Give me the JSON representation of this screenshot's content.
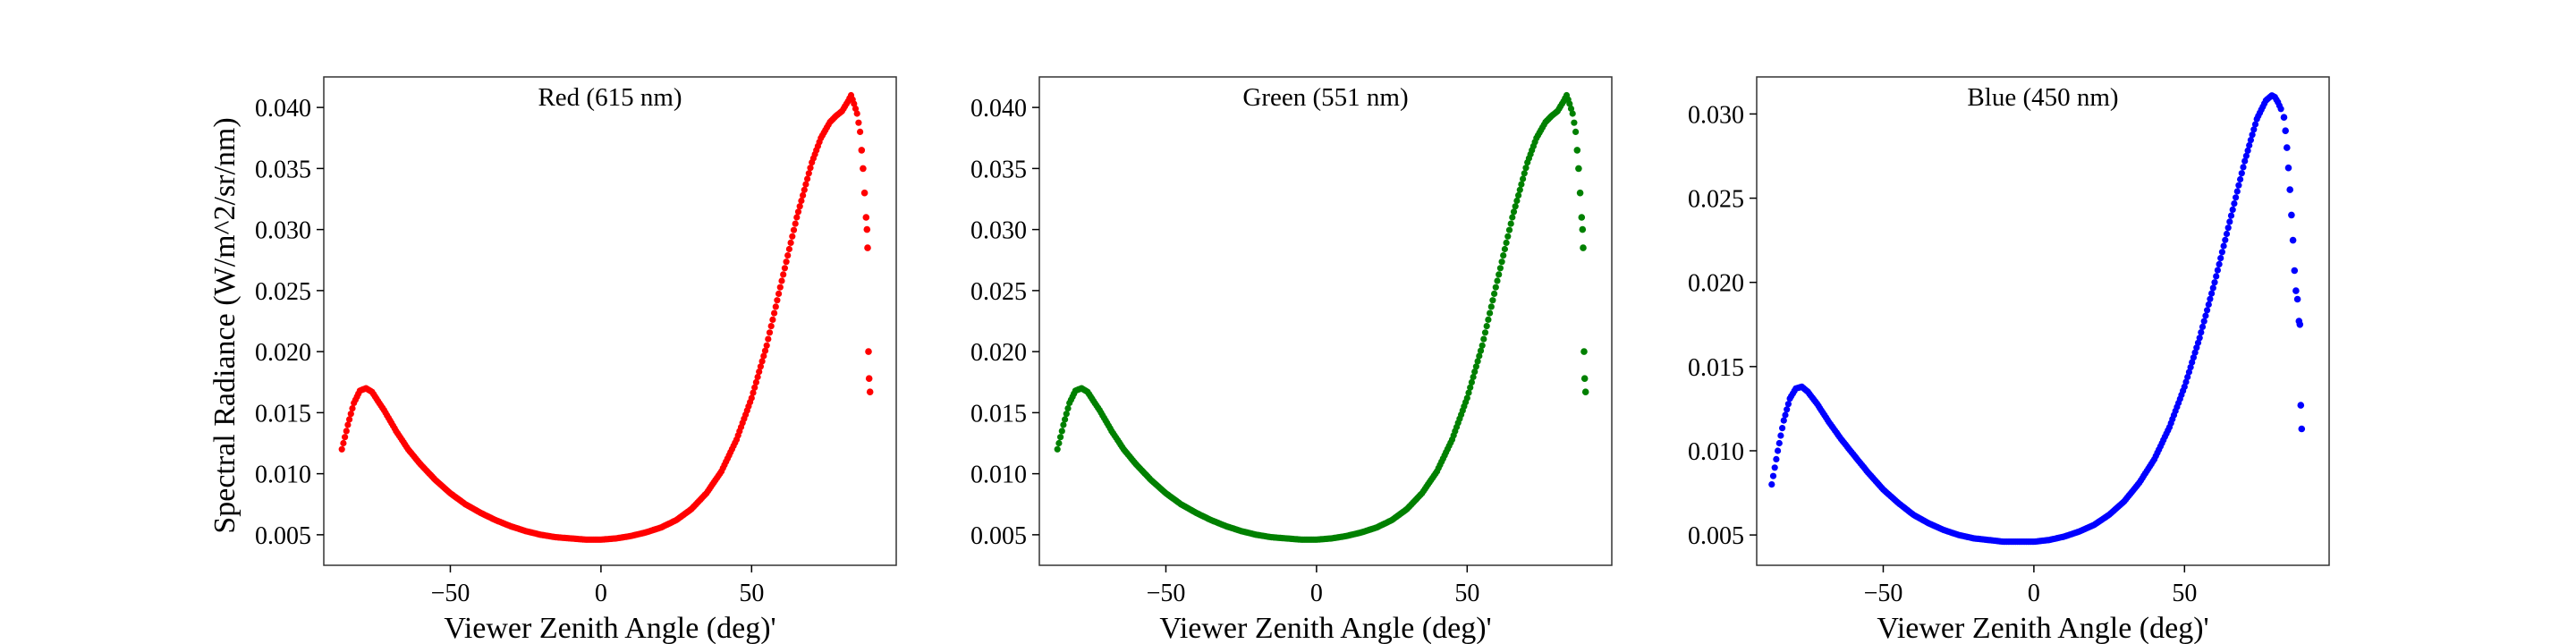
{
  "figure": {
    "ylabel": "Spectral Radiance (W/m^2/sr/nm)"
  },
  "chart_data": [
    {
      "type": "scatter",
      "title": "Red (615 nm)",
      "xlabel": "Viewer Zenith Angle (deg)'",
      "ylabel": "Spectral Radiance (W/m^2/sr/nm)",
      "color": "#ff0000",
      "xlim": [
        -92,
        98
      ],
      "ylim": [
        0.0025,
        0.0425
      ],
      "xticks": [
        -50,
        0,
        50
      ],
      "xtick_labels": [
        "−50",
        "0",
        "50"
      ],
      "yticks": [
        0.005,
        0.01,
        0.015,
        0.02,
        0.025,
        0.03,
        0.035,
        0.04
      ],
      "ytick_labels": [
        "0.005",
        "0.010",
        "0.015",
        "0.020",
        "0.025",
        "0.030",
        "0.035",
        "0.040"
      ],
      "grid": false,
      "curve": {
        "x": [
          -86,
          -84,
          -82,
          -80,
          -78,
          -76,
          -72,
          -68,
          -64,
          -60,
          -55,
          -50,
          -45,
          -40,
          -35,
          -30,
          -25,
          -20,
          -15,
          -10,
          -5,
          0,
          5,
          10,
          15,
          20,
          25,
          30,
          35,
          40,
          45,
          50,
          55,
          60,
          65,
          70,
          73,
          76,
          78,
          80,
          82,
          83,
          84,
          85,
          86
        ],
        "y": [
          0.012,
          0.014,
          0.0158,
          0.0168,
          0.017,
          0.0167,
          0.0152,
          0.0135,
          0.012,
          0.0108,
          0.0095,
          0.0084,
          0.0075,
          0.0068,
          0.0062,
          0.0057,
          0.0053,
          0.005,
          0.0048,
          0.0047,
          0.0046,
          0.0046,
          0.0047,
          0.0049,
          0.0052,
          0.0056,
          0.0062,
          0.0071,
          0.0084,
          0.0102,
          0.0128,
          0.0162,
          0.0205,
          0.0258,
          0.031,
          0.0355,
          0.0375,
          0.0388,
          0.0393,
          0.0397,
          0.0405,
          0.041,
          0.0403,
          0.0395,
          0.038
        ]
      },
      "outliers": {
        "x": [
          86.5,
          87,
          87.5,
          88,
          88.3,
          88.5,
          88.8,
          89,
          89.3
        ],
        "y": [
          0.0365,
          0.035,
          0.033,
          0.031,
          0.03,
          0.0285,
          0.02,
          0.0178,
          0.0167
        ]
      }
    },
    {
      "type": "scatter",
      "title": "Green (551 nm)",
      "xlabel": "Viewer Zenith Angle (deg)'",
      "ylabel": "",
      "color": "#008000",
      "xlim": [
        -92,
        98
      ],
      "ylim": [
        0.0025,
        0.0425
      ],
      "xticks": [
        -50,
        0,
        50
      ],
      "xtick_labels": [
        "−50",
        "0",
        "50"
      ],
      "yticks": [
        0.005,
        0.01,
        0.015,
        0.02,
        0.025,
        0.03,
        0.035,
        0.04
      ],
      "ytick_labels": [
        "0.005",
        "0.010",
        "0.015",
        "0.020",
        "0.025",
        "0.030",
        "0.035",
        "0.040"
      ],
      "grid": false,
      "curve": {
        "x": [
          -86,
          -84,
          -82,
          -80,
          -78,
          -76,
          -72,
          -68,
          -64,
          -60,
          -55,
          -50,
          -45,
          -40,
          -35,
          -30,
          -25,
          -20,
          -15,
          -10,
          -5,
          0,
          5,
          10,
          15,
          20,
          25,
          30,
          35,
          40,
          45,
          50,
          55,
          60,
          65,
          70,
          73,
          76,
          78,
          80,
          82,
          83,
          84,
          85,
          86
        ],
        "y": [
          0.012,
          0.014,
          0.0158,
          0.0168,
          0.017,
          0.0167,
          0.0152,
          0.0135,
          0.012,
          0.0108,
          0.0095,
          0.0084,
          0.0075,
          0.0068,
          0.0062,
          0.0057,
          0.0053,
          0.005,
          0.0048,
          0.0047,
          0.0046,
          0.0046,
          0.0047,
          0.0049,
          0.0052,
          0.0056,
          0.0062,
          0.0071,
          0.0084,
          0.0102,
          0.0128,
          0.0162,
          0.0205,
          0.0258,
          0.031,
          0.0355,
          0.0375,
          0.0388,
          0.0393,
          0.0397,
          0.0405,
          0.041,
          0.0403,
          0.0395,
          0.038
        ]
      },
      "outliers": {
        "x": [
          86.5,
          87,
          87.5,
          88,
          88.3,
          88.5,
          88.8,
          89,
          89.3
        ],
        "y": [
          0.0365,
          0.035,
          0.033,
          0.031,
          0.03,
          0.0285,
          0.02,
          0.0178,
          0.0167
        ]
      }
    },
    {
      "type": "scatter",
      "title": "Blue (450 nm)",
      "xlabel": "Viewer Zenith Angle (deg)'",
      "ylabel": "",
      "color": "#0000ff",
      "xlim": [
        -92,
        98
      ],
      "ylim": [
        0.0032,
        0.0322
      ],
      "xticks": [
        -50,
        0,
        50
      ],
      "xtick_labels": [
        "−50",
        "0",
        "50"
      ],
      "yticks": [
        0.005,
        0.01,
        0.015,
        0.02,
        0.025,
        0.03
      ],
      "ytick_labels": [
        "0.005",
        "0.010",
        "0.015",
        "0.020",
        "0.025",
        "0.030"
      ],
      "grid": false,
      "curve": {
        "x": [
          -87,
          -85,
          -83,
          -81,
          -79,
          -77,
          -75,
          -72,
          -68,
          -64,
          -60,
          -55,
          -50,
          -45,
          -40,
          -35,
          -30,
          -25,
          -20,
          -15,
          -10,
          -5,
          0,
          5,
          10,
          15,
          20,
          25,
          30,
          35,
          40,
          45,
          50,
          55,
          60,
          65,
          70,
          74,
          77,
          79,
          80,
          81,
          82
        ],
        "y": [
          0.008,
          0.01,
          0.0118,
          0.0131,
          0.0137,
          0.0138,
          0.0135,
          0.0128,
          0.0117,
          0.0107,
          0.0098,
          0.0087,
          0.0077,
          0.0069,
          0.0062,
          0.0057,
          0.0053,
          0.005,
          0.0048,
          0.0047,
          0.0046,
          0.0046,
          0.0046,
          0.0047,
          0.0049,
          0.0052,
          0.0056,
          0.0062,
          0.007,
          0.0081,
          0.0095,
          0.0114,
          0.0138,
          0.0167,
          0.02,
          0.0236,
          0.0272,
          0.0297,
          0.0308,
          0.0311,
          0.031,
          0.0307,
          0.0303
        ]
      },
      "outliers": {
        "x": [
          83,
          83.5,
          84,
          84.5,
          85,
          85.5,
          86,
          86.5,
          87,
          87.5,
          88,
          88.3,
          88.6,
          88.9
        ],
        "y": [
          0.0298,
          0.029,
          0.028,
          0.0268,
          0.0255,
          0.024,
          0.0225,
          0.0207,
          0.0195,
          0.019,
          0.0177,
          0.0175,
          0.0127,
          0.0113
        ]
      }
    }
  ]
}
